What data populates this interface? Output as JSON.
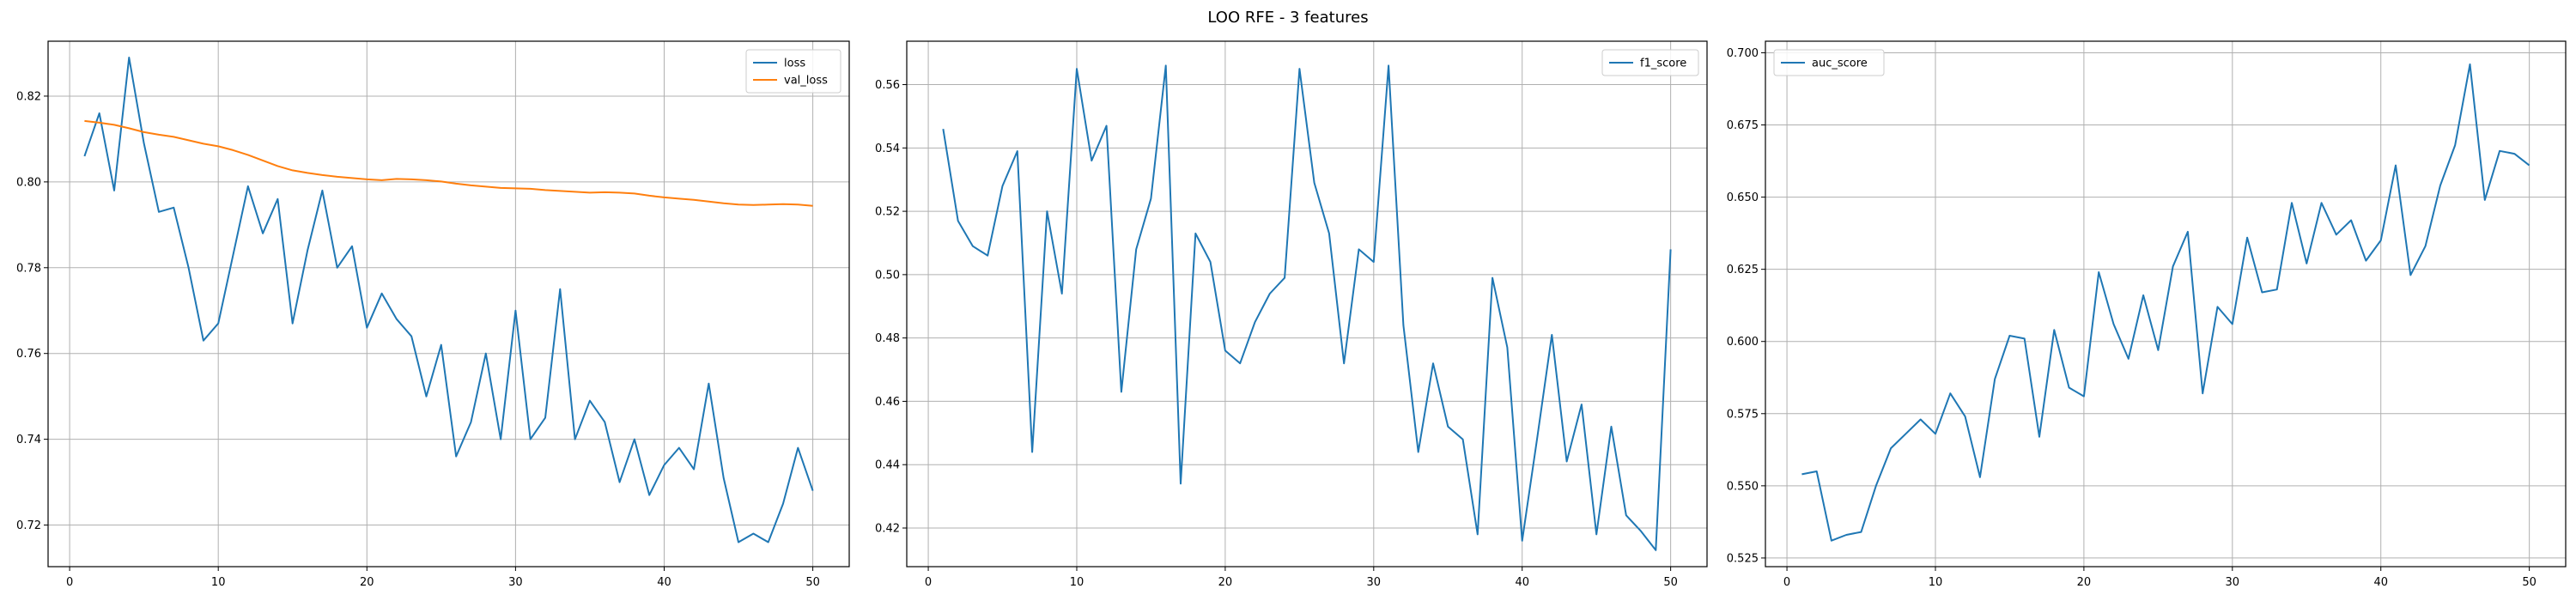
{
  "figure": {
    "title": "LOO RFE - 3 features"
  },
  "colors": {
    "blue": "#1f77b4",
    "orange": "#ff7f0e",
    "grid": "#b0b0b0"
  },
  "chart_data": [
    {
      "type": "line",
      "title": "",
      "xlabel": "",
      "ylabel": "",
      "xlim": [
        -1.45,
        52.45
      ],
      "ylim": [
        0.7103,
        0.8328
      ],
      "xticks": [
        0,
        10,
        20,
        30,
        40,
        50
      ],
      "xtick_labels": [
        "0",
        "10",
        "20",
        "30",
        "40",
        "50"
      ],
      "yticks": [
        0.72,
        0.74,
        0.76,
        0.78,
        0.8,
        0.82
      ],
      "ytick_labels": [
        "0.72",
        "0.74",
        "0.76",
        "0.78",
        "0.80",
        "0.82"
      ],
      "grid": true,
      "legend": "top-right",
      "x": [
        1,
        2,
        3,
        4,
        5,
        6,
        7,
        8,
        9,
        10,
        11,
        12,
        13,
        14,
        15,
        16,
        17,
        18,
        19,
        20,
        21,
        22,
        23,
        24,
        25,
        26,
        27,
        28,
        29,
        30,
        31,
        32,
        33,
        34,
        35,
        36,
        37,
        38,
        39,
        40,
        41,
        42,
        43,
        44,
        45,
        46,
        47,
        48,
        49,
        50
      ],
      "series": [
        {
          "name": "loss",
          "color": "#1f77b4",
          "values": [
            0.806,
            0.816,
            0.798,
            0.829,
            0.809,
            0.793,
            0.794,
            0.78,
            0.763,
            0.767,
            0.783,
            0.799,
            0.788,
            0.796,
            0.767,
            0.784,
            0.798,
            0.78,
            0.785,
            0.766,
            0.774,
            0.768,
            0.764,
            0.75,
            0.762,
            0.736,
            0.744,
            0.76,
            0.74,
            0.77,
            0.74,
            0.745,
            0.775,
            0.74,
            0.749,
            0.744,
            0.73,
            0.74,
            0.727,
            0.734,
            0.738,
            0.733,
            0.753,
            0.731,
            0.716,
            0.718,
            0.716,
            0.725,
            0.738,
            0.728
          ]
        },
        {
          "name": "val_loss",
          "color": "#ff7f0e",
          "values": [
            0.8142,
            0.8138,
            0.8133,
            0.8125,
            0.8116,
            0.811,
            0.8105,
            0.8097,
            0.8089,
            0.8083,
            0.8074,
            0.8063,
            0.805,
            0.8037,
            0.8027,
            0.8021,
            0.8016,
            0.8012,
            0.8009,
            0.8006,
            0.8004,
            0.8007,
            0.8006,
            0.8004,
            0.8001,
            0.7996,
            0.7992,
            0.7989,
            0.7986,
            0.7985,
            0.7984,
            0.7981,
            0.7979,
            0.7977,
            0.7975,
            0.7976,
            0.7975,
            0.7973,
            0.7968,
            0.7964,
            0.7961,
            0.7958,
            0.7954,
            0.795,
            0.7947,
            0.7946,
            0.7947,
            0.7948,
            0.7947,
            0.7944
          ]
        }
      ]
    },
    {
      "type": "line",
      "title": "",
      "xlabel": "",
      "ylabel": "",
      "xlim": [
        -1.45,
        52.45
      ],
      "ylim": [
        0.4078,
        0.5737
      ],
      "xticks": [
        0,
        10,
        20,
        30,
        40,
        50
      ],
      "xtick_labels": [
        "0",
        "10",
        "20",
        "30",
        "40",
        "50"
      ],
      "yticks": [
        0.42,
        0.44,
        0.46,
        0.48,
        0.5,
        0.52,
        0.54,
        0.56
      ],
      "ytick_labels": [
        "0.42",
        "0.44",
        "0.46",
        "0.48",
        "0.50",
        "0.52",
        "0.54",
        "0.56"
      ],
      "grid": true,
      "legend": "top-right",
      "x": [
        1,
        2,
        3,
        4,
        5,
        6,
        7,
        8,
        9,
        10,
        11,
        12,
        13,
        14,
        15,
        16,
        17,
        18,
        19,
        20,
        21,
        22,
        23,
        24,
        25,
        26,
        27,
        28,
        29,
        30,
        31,
        32,
        33,
        34,
        35,
        36,
        37,
        38,
        39,
        40,
        41,
        42,
        43,
        44,
        45,
        46,
        47,
        48,
        49,
        50
      ],
      "series": [
        {
          "name": "f1_score",
          "color": "#1f77b4",
          "values": [
            0.546,
            0.517,
            0.509,
            0.506,
            0.528,
            0.539,
            0.444,
            0.52,
            0.494,
            0.565,
            0.536,
            0.547,
            0.463,
            0.508,
            0.524,
            0.566,
            0.434,
            0.513,
            0.504,
            0.476,
            0.472,
            0.485,
            0.494,
            0.499,
            0.565,
            0.529,
            0.513,
            0.472,
            0.508,
            0.504,
            0.566,
            0.484,
            0.444,
            0.472,
            0.452,
            0.448,
            0.418,
            0.499,
            0.477,
            0.416,
            0.448,
            0.481,
            0.441,
            0.459,
            0.418,
            0.452,
            0.424,
            0.419,
            0.413,
            0.508
          ]
        }
      ]
    },
    {
      "type": "line",
      "title": "",
      "xlabel": "",
      "ylabel": "",
      "xlim": [
        -1.45,
        52.45
      ],
      "ylim": [
        0.522,
        0.704
      ],
      "xticks": [
        0,
        10,
        20,
        30,
        40,
        50
      ],
      "xtick_labels": [
        "0",
        "10",
        "20",
        "30",
        "40",
        "50"
      ],
      "yticks": [
        0.525,
        0.55,
        0.575,
        0.6,
        0.625,
        0.65,
        0.675,
        0.7
      ],
      "ytick_labels": [
        "0.525",
        "0.550",
        "0.575",
        "0.600",
        "0.625",
        "0.650",
        "0.675",
        "0.700"
      ],
      "grid": true,
      "legend": "top-left",
      "x": [
        1,
        2,
        3,
        4,
        5,
        6,
        7,
        8,
        9,
        10,
        11,
        12,
        13,
        14,
        15,
        16,
        17,
        18,
        19,
        20,
        21,
        22,
        23,
        24,
        25,
        26,
        27,
        28,
        29,
        30,
        31,
        32,
        33,
        34,
        35,
        36,
        37,
        38,
        39,
        40,
        41,
        42,
        43,
        44,
        45,
        46,
        47,
        48,
        49,
        50
      ],
      "series": [
        {
          "name": "auc_score",
          "color": "#1f77b4",
          "values": [
            0.554,
            0.555,
            0.531,
            0.533,
            0.534,
            0.55,
            0.563,
            0.568,
            0.573,
            0.568,
            0.582,
            0.574,
            0.553,
            0.587,
            0.602,
            0.601,
            0.567,
            0.604,
            0.584,
            0.581,
            0.624,
            0.606,
            0.594,
            0.616,
            0.597,
            0.626,
            0.638,
            0.582,
            0.612,
            0.606,
            0.636,
            0.617,
            0.618,
            0.648,
            0.627,
            0.648,
            0.637,
            0.642,
            0.628,
            0.635,
            0.661,
            0.623,
            0.633,
            0.654,
            0.668,
            0.696,
            0.649,
            0.666,
            0.665,
            0.661
          ]
        }
      ]
    }
  ]
}
